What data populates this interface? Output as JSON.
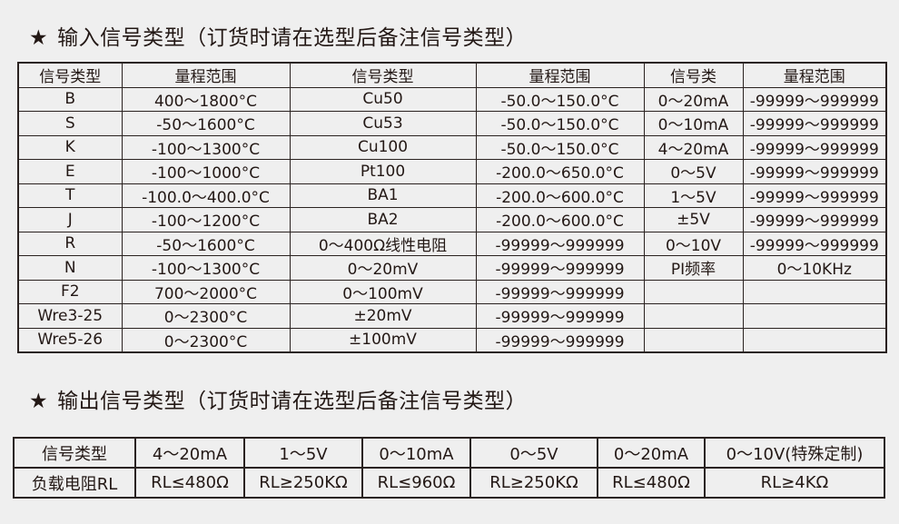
{
  "input_section": {
    "star": "★",
    "title": "输入信号类型（订货时请在选型后备注信号类型）",
    "headers": [
      "信号类型",
      "量程范围",
      "信号类型",
      "量程范围",
      "信号类",
      "量程范围"
    ],
    "rows": [
      [
        "B",
        "400～1800°C",
        "Cu50",
        "-50.0～150.0°C",
        "0～20mA",
        "-99999～999999"
      ],
      [
        "S",
        "-50～1600°C",
        "Cu53",
        "-50.0～150.0°C",
        "0～10mA",
        "-99999～999999"
      ],
      [
        "K",
        "-100～1300°C",
        "Cu100",
        "-50.0～150.0°C",
        "4～20mA",
        "-99999～999999"
      ],
      [
        "E",
        "-100～1000°C",
        "Pt100",
        "-200.0～650.0°C",
        "0～5V",
        "-99999～999999"
      ],
      [
        "T",
        "-100.0～400.0°C",
        "BA1",
        "-200.0～600.0°C",
        "1～5V",
        "-99999～999999"
      ],
      [
        "J",
        "-100～1200°C",
        "BA2",
        "-200.0～600.0°C",
        "±5V",
        "-99999～999999"
      ],
      [
        "R",
        "-50～1600°C",
        "0～400Ω线性电阻",
        "-99999～999999",
        "0～10V",
        "-99999～999999"
      ],
      [
        "N",
        "-100～1300°C",
        "0～20mV",
        "-99999～999999",
        "PI频率",
        "0～10KHz"
      ],
      [
        "F2",
        "700～2000°C",
        "0～100mV",
        "-99999～999999",
        "",
        ""
      ],
      [
        "Wre3-25",
        "0～2300°C",
        "±20mV",
        "-99999～999999",
        "",
        ""
      ],
      [
        "Wre5-26",
        "0～2300°C",
        "±100mV",
        "-99999～999999",
        "",
        ""
      ]
    ]
  },
  "output_section": {
    "star": "★",
    "title": "输出信号类型（订货时请在选型后备注信号类型）",
    "rows": [
      [
        "信号类型",
        "4～20mA",
        "1～5V",
        "0～10mA",
        "0～5V",
        "0～20mA",
        "0～10V(特殊定制)"
      ],
      [
        "负载电阻RL",
        "RL≤480Ω",
        "RL≥250KΩ",
        "RL≤960Ω",
        "RL≥250KΩ",
        "RL≤480Ω",
        "RL≥4KΩ"
      ]
    ]
  }
}
